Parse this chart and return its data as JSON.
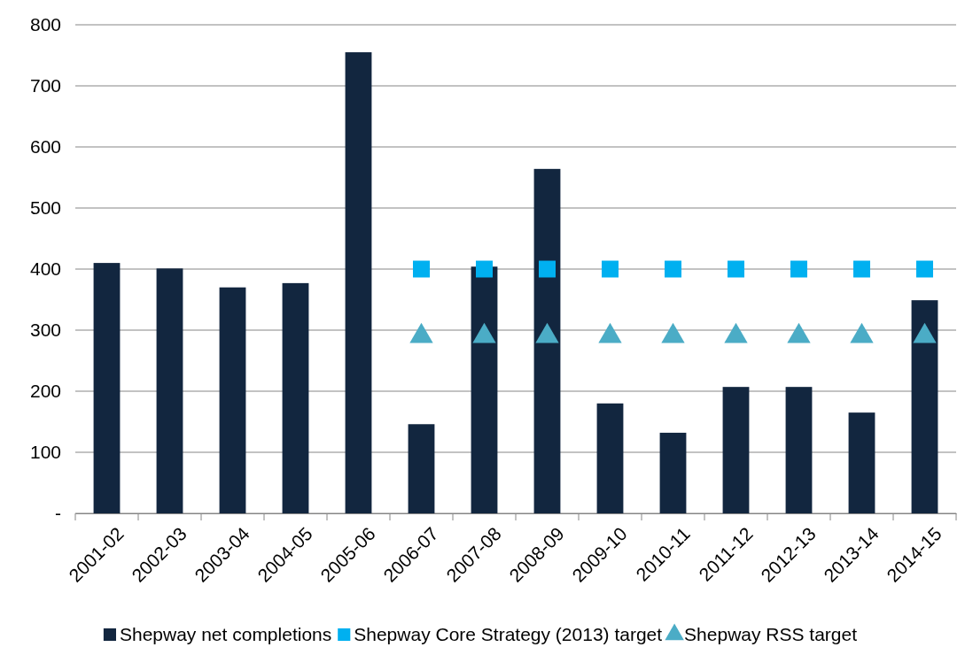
{
  "chart_data": {
    "type": "bar",
    "categories": [
      "2001-02",
      "2002-03",
      "2003-04",
      "2004-05",
      "2005-06",
      "2006-07",
      "2007-08",
      "2008-09",
      "2009-10",
      "2010-11",
      "2011-12",
      "2012-13",
      "2013-14",
      "2014-15"
    ],
    "series": [
      {
        "name": "Shepway net completions",
        "color": "#12263f",
        "values": [
          410,
          401,
          370,
          377,
          755,
          146,
          404,
          564,
          180,
          132,
          207,
          207,
          165,
          349
        ]
      },
      {
        "name": "Shepway Core Strategy (2013) target",
        "type": "scatter",
        "marker": "square",
        "color": "#00b0f0",
        "values": [
          null,
          null,
          null,
          null,
          null,
          400,
          400,
          400,
          400,
          400,
          400,
          400,
          400,
          400
        ]
      },
      {
        "name": "Shepway RSS target",
        "type": "scatter",
        "marker": "triangle",
        "color": "#4bacc6",
        "values": [
          null,
          null,
          null,
          null,
          null,
          290,
          290,
          290,
          290,
          290,
          290,
          290,
          290,
          290
        ]
      }
    ],
    "ylim": [
      0,
      800
    ],
    "yticks": [
      {
        "value": 0,
        "label": "-"
      },
      100,
      200,
      300,
      400,
      500,
      600,
      700,
      800
    ],
    "grid": "y",
    "legend": "bottom"
  }
}
